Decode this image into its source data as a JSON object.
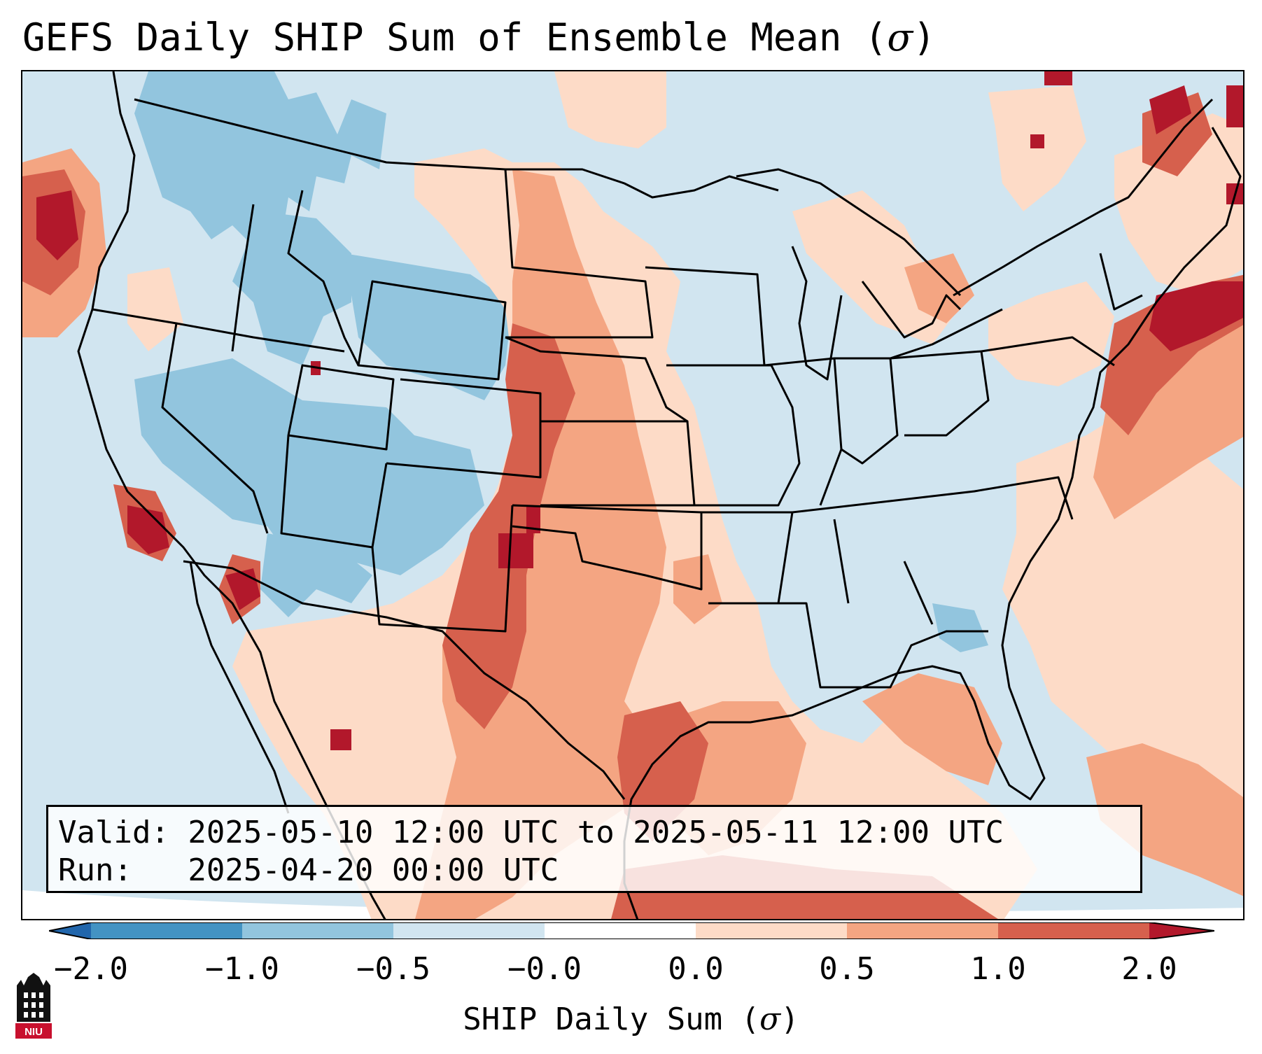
{
  "title": "GEFS Daily SHIP Sum of Ensemble Mean (",
  "title_symbol": "σ",
  "title_close": ")",
  "valid_line": "Valid: 2025-05-10 12:00 UTC to 2025-05-11 12:00 UTC",
  "run_line": "Run:   2025-04-20 00:00 UTC",
  "colorbar": {
    "label_prefix": "SHIP Daily Sum (",
    "label_symbol": "σ",
    "label_suffix": ")",
    "ticks": [
      "−2.0",
      "−1.0",
      "−0.5",
      "−0.0",
      "0.0",
      "0.5",
      "1.0",
      "2.0"
    ],
    "colors": [
      "#4393c3",
      "#92c5de",
      "#d1e5f0",
      "#ffffff",
      "#fddbc7",
      "#f4a582",
      "#d6604d",
      "#b2182b"
    ],
    "extend": "both"
  },
  "logo": {
    "text": "NIU",
    "icon": "niu-castle-logo-icon"
  },
  "map": {
    "background_color": "#d1e5f0",
    "strong_negative_color": "#92c5de",
    "weak_positive_color": "#fddbc7",
    "moderate_positive_color": "#f4a582",
    "strong_positive_color": "#d6604d",
    "extreme_positive_color": "#b2182b"
  }
}
